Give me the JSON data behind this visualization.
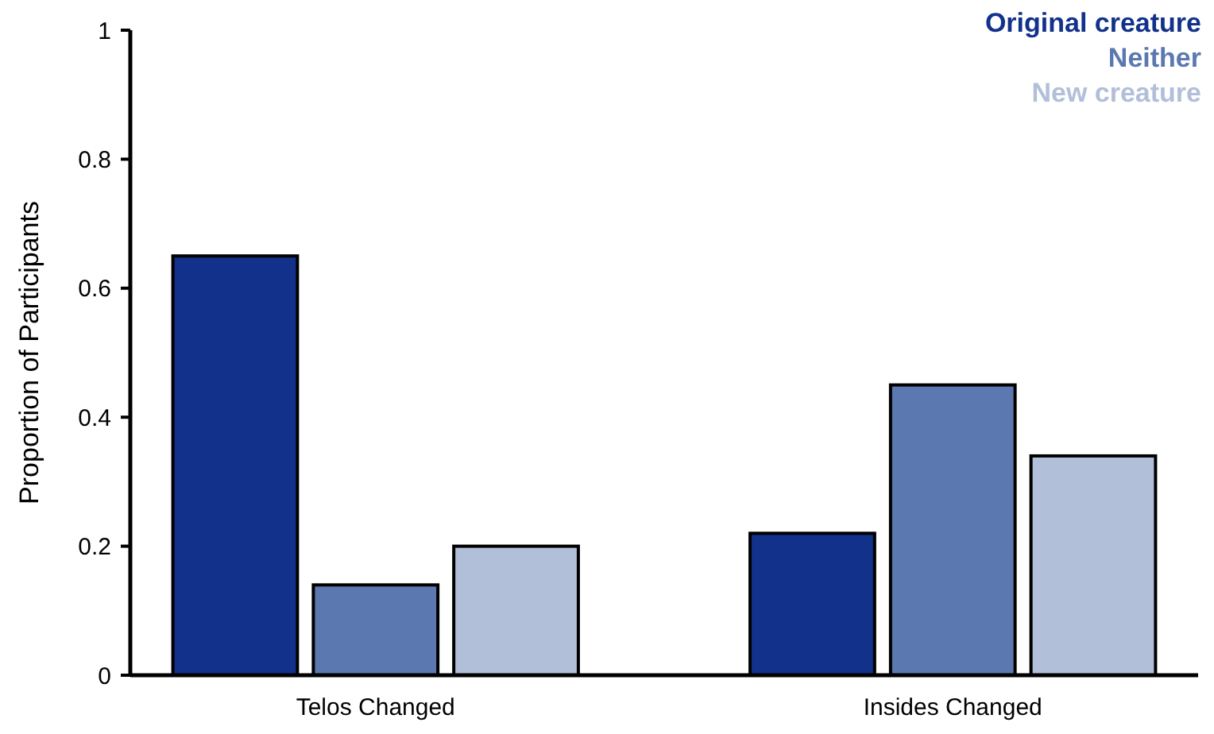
{
  "chart_data": {
    "type": "bar",
    "ylabel": "Proportion of Participants",
    "categories": [
      "Telos Changed",
      "Insides Changed"
    ],
    "series": [
      {
        "name": "Original creature",
        "color": "#12318a",
        "values": [
          0.65,
          0.22
        ]
      },
      {
        "name": "Neither",
        "color": "#5b78b0",
        "values": [
          0.14,
          0.45
        ]
      },
      {
        "name": "New creature",
        "color": "#b1bfd8",
        "values": [
          0.2,
          0.34
        ]
      }
    ],
    "ylim": [
      0,
      1
    ],
    "yticks": [
      0,
      0.2,
      0.4,
      0.6,
      0.8,
      1
    ],
    "grid": false,
    "legend": "top right"
  }
}
